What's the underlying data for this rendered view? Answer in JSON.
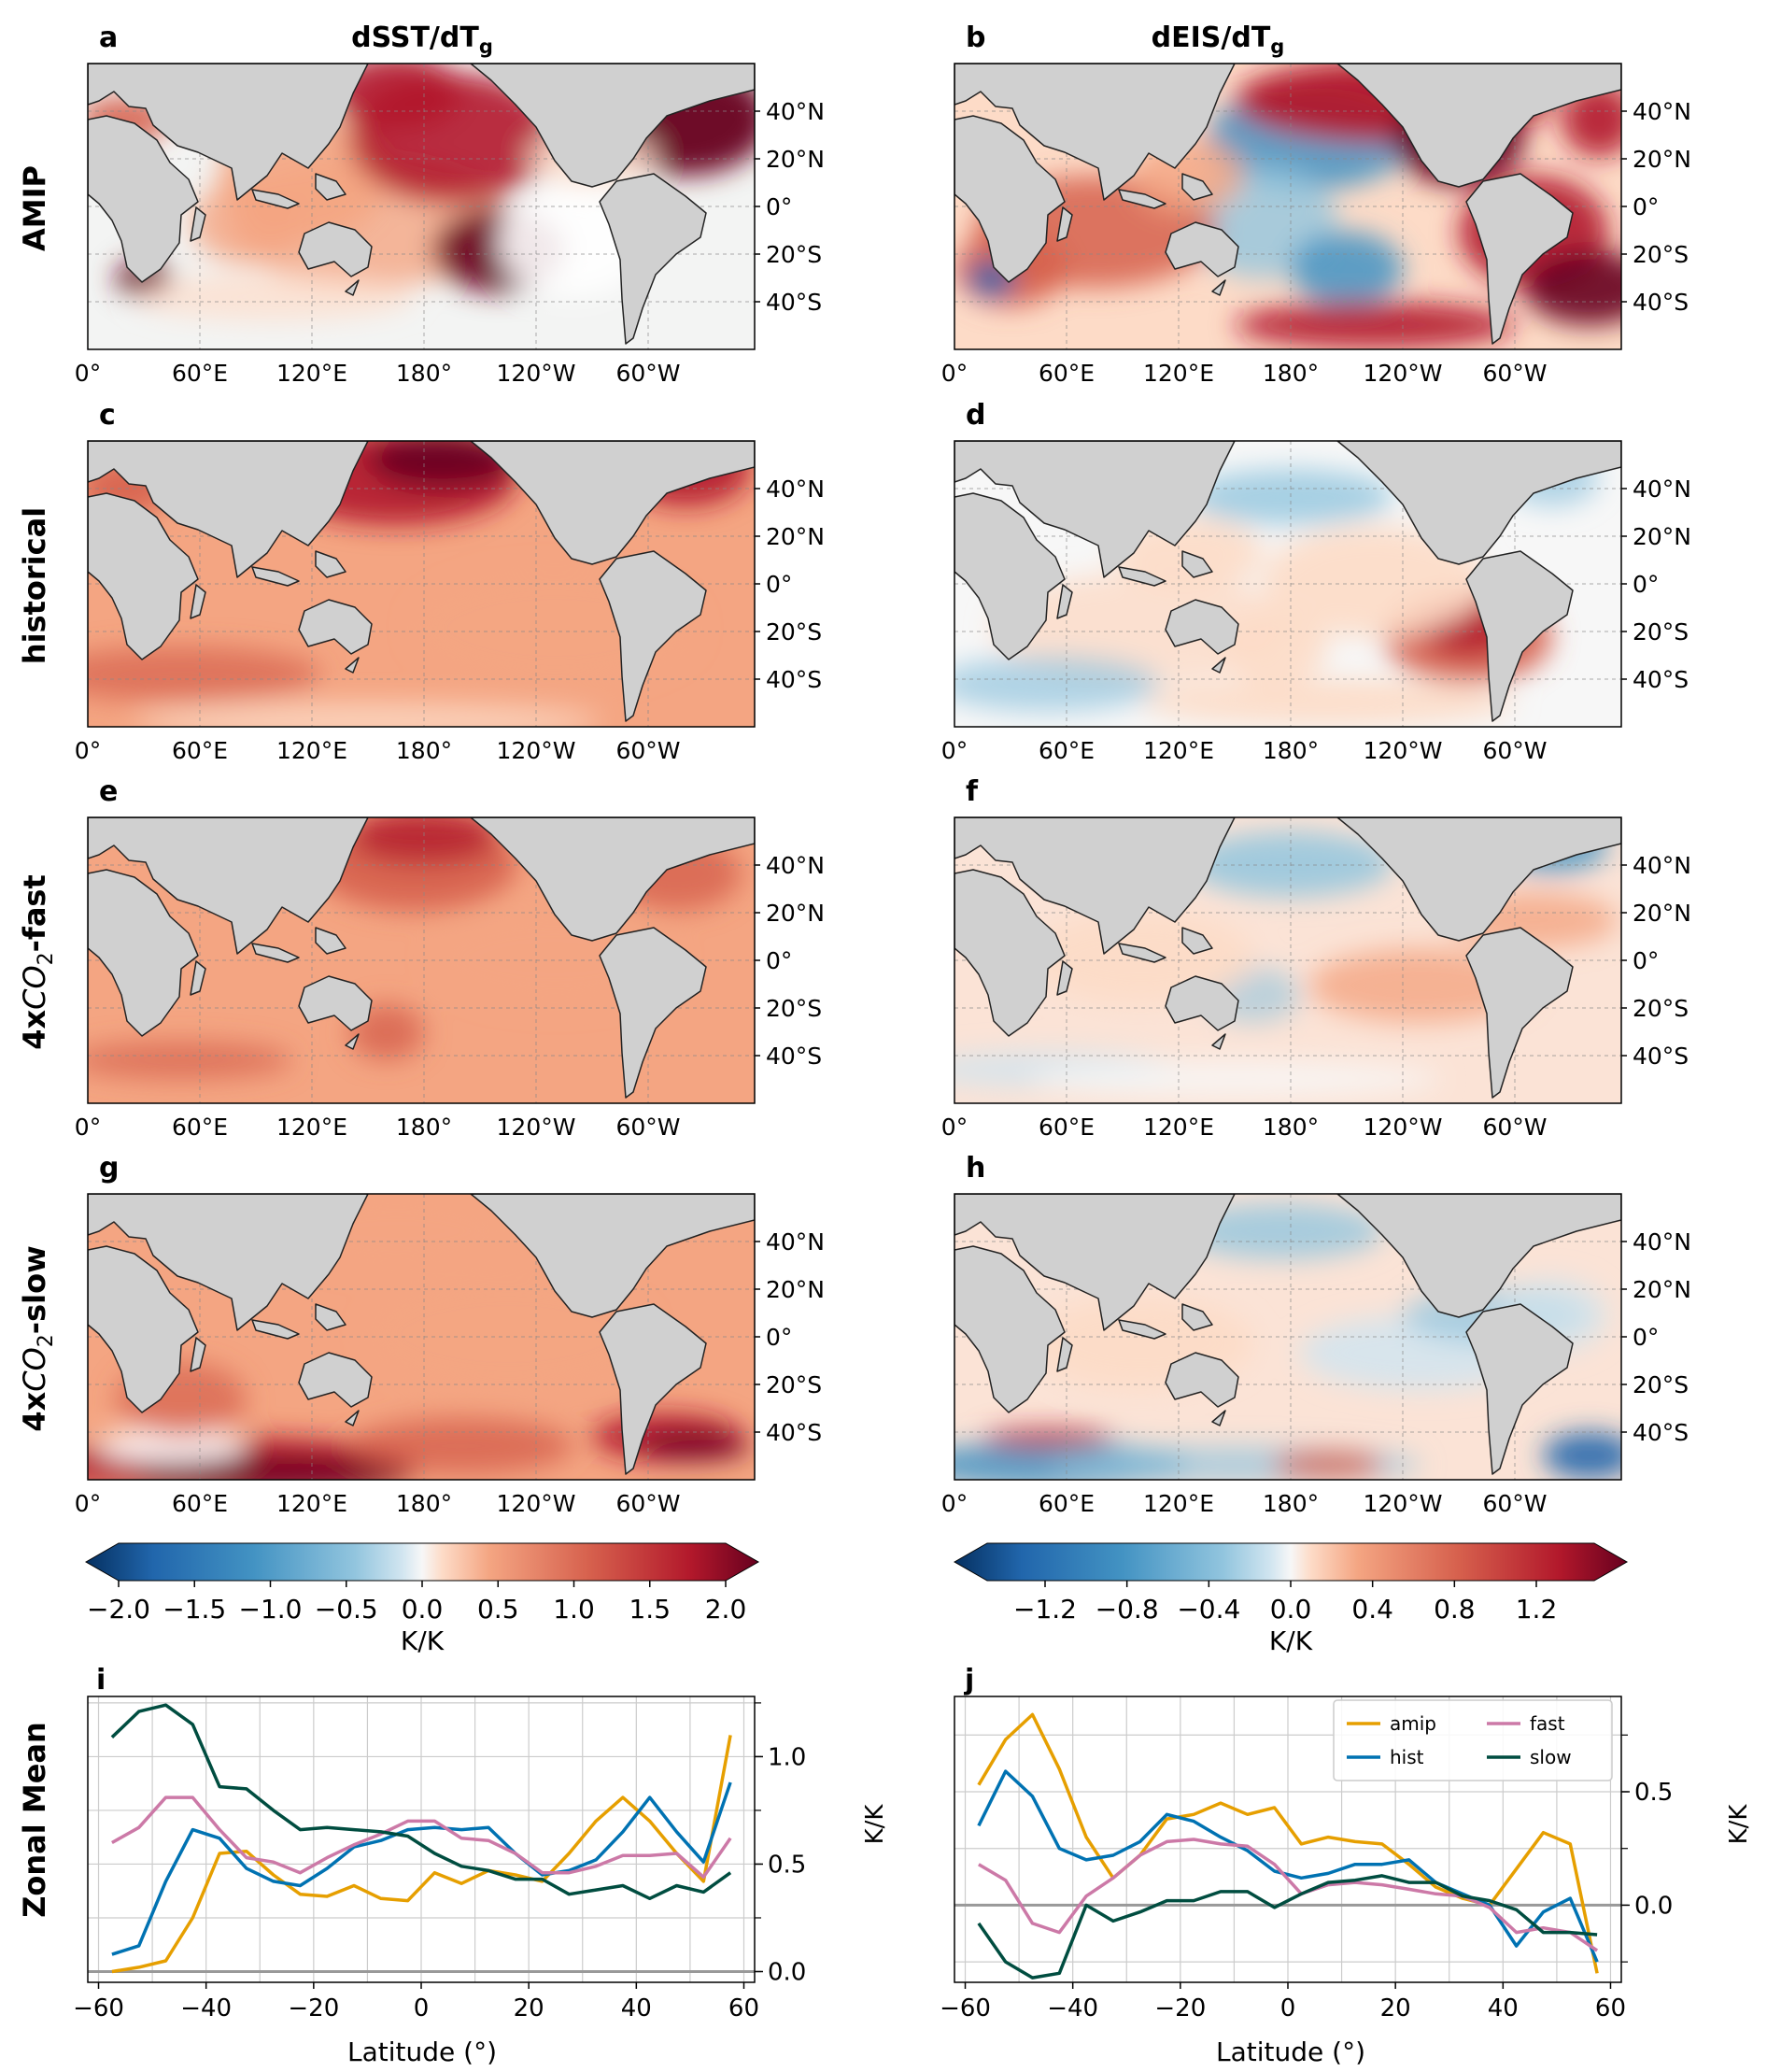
{
  "columns": {
    "left": {
      "title_base": "dSST/dT",
      "title_sub": "g"
    },
    "right": {
      "title_base": "dEIS/dT",
      "title_sub": "g"
    }
  },
  "rows": [
    {
      "label": "AMIP",
      "left_letter": "a",
      "right_letter": "b"
    },
    {
      "label": "historical",
      "left_letter": "c",
      "right_letter": "d"
    },
    {
      "label_parts": [
        "4x",
        "CO",
        "2",
        "-fast"
      ],
      "left_letter": "e",
      "right_letter": "f"
    },
    {
      "label_parts": [
        "4x",
        "CO",
        "2",
        "-slow"
      ],
      "left_letter": "g",
      "right_letter": "h"
    }
  ],
  "map_axes": {
    "lon_ticks": [
      "0°",
      "60°E",
      "120°E",
      "180°",
      "120°W",
      "60°W"
    ],
    "lat_ticks": [
      "40°N",
      "20°N",
      "0°",
      "20°S",
      "40°S"
    ]
  },
  "colors": {
    "land": "#d0d0d0",
    "coast": "#222222",
    "amip": "#e69f00",
    "hist": "#0072b2",
    "fast": "#cc79a7",
    "slow": "#004d40",
    "zero_line": "#999999",
    "grid": "#cccccc"
  },
  "colorbars": {
    "left": {
      "ticks": [
        "−2.0",
        "−1.5",
        "−1.0",
        "−0.5",
        "0.0",
        "0.5",
        "1.0",
        "1.5",
        "2.0"
      ],
      "unit": "K/K"
    },
    "right": {
      "ticks": [
        "−1.2",
        "−0.8",
        "−0.4",
        "0.0",
        "0.4",
        "0.8",
        "1.2"
      ],
      "unit": "K/K"
    }
  },
  "zonal": {
    "row_label": "Zonal Mean",
    "left_letter": "i",
    "right_letter": "j",
    "xlabel": "Latitude (°)",
    "ylabel": "K/K",
    "legend": [
      "amip",
      "hist",
      "fast",
      "slow"
    ]
  },
  "chart_data": [
    {
      "type": "line",
      "panel": "i",
      "xlabel": "Latitude (°)",
      "ylabel": "K/K",
      "xlim": [
        -62,
        62
      ],
      "ylim": [
        -0.05,
        1.28
      ],
      "xticks": [
        -60,
        -40,
        -20,
        0,
        20,
        40,
        60
      ],
      "yticks": [
        0.0,
        0.5,
        1.0
      ],
      "x": [
        -57.5,
        -52.5,
        -47.5,
        -42.5,
        -37.5,
        -32.5,
        -27.5,
        -22.5,
        -17.5,
        -12.5,
        -7.5,
        -2.5,
        2.5,
        7.5,
        12.5,
        17.5,
        22.5,
        27.5,
        32.5,
        37.5,
        42.5,
        47.5,
        52.5,
        57.5
      ],
      "series": [
        {
          "name": "amip",
          "values": [
            0.0,
            0.02,
            0.05,
            0.25,
            0.55,
            0.56,
            0.45,
            0.36,
            0.35,
            0.4,
            0.34,
            0.33,
            0.46,
            0.41,
            0.47,
            0.45,
            0.42,
            0.55,
            0.7,
            0.81,
            0.7,
            0.55,
            0.42,
            1.1
          ]
        },
        {
          "name": "hist",
          "values": [
            0.08,
            0.12,
            0.42,
            0.66,
            0.62,
            0.48,
            0.42,
            0.4,
            0.48,
            0.58,
            0.61,
            0.66,
            0.67,
            0.66,
            0.67,
            0.55,
            0.45,
            0.47,
            0.52,
            0.65,
            0.81,
            0.65,
            0.51,
            0.88
          ]
        },
        {
          "name": "fast",
          "values": [
            0.6,
            0.67,
            0.81,
            0.81,
            0.66,
            0.53,
            0.51,
            0.46,
            0.53,
            0.59,
            0.64,
            0.7,
            0.7,
            0.62,
            0.61,
            0.55,
            0.46,
            0.46,
            0.49,
            0.54,
            0.54,
            0.55,
            0.44,
            0.62
          ]
        },
        {
          "name": "slow",
          "values": [
            1.09,
            1.21,
            1.24,
            1.15,
            0.86,
            0.85,
            0.75,
            0.66,
            0.67,
            0.66,
            0.65,
            0.63,
            0.55,
            0.49,
            0.47,
            0.43,
            0.43,
            0.36,
            0.38,
            0.4,
            0.34,
            0.4,
            0.37,
            0.46
          ]
        }
      ]
    },
    {
      "type": "line",
      "panel": "j",
      "xlabel": "Latitude (°)",
      "ylabel": "K/K",
      "xlim": [
        -62,
        62
      ],
      "ylim": [
        -0.34,
        0.92
      ],
      "xticks": [
        -60,
        -40,
        -20,
        0,
        20,
        40,
        60
      ],
      "yticks": [
        0.0,
        0.5
      ],
      "legend_position": "top-right",
      "x": [
        -57.5,
        -52.5,
        -47.5,
        -42.5,
        -37.5,
        -32.5,
        -27.5,
        -22.5,
        -17.5,
        -12.5,
        -7.5,
        -2.5,
        2.5,
        7.5,
        12.5,
        17.5,
        22.5,
        27.5,
        32.5,
        37.5,
        42.5,
        47.5,
        52.5,
        57.5
      ],
      "series": [
        {
          "name": "amip",
          "values": [
            0.53,
            0.73,
            0.84,
            0.6,
            0.3,
            0.12,
            0.22,
            0.38,
            0.4,
            0.45,
            0.4,
            0.43,
            0.27,
            0.3,
            0.28,
            0.27,
            0.18,
            0.08,
            0.03,
            0.0,
            0.16,
            0.32,
            0.27,
            -0.3
          ]
        },
        {
          "name": "hist",
          "values": [
            0.35,
            0.59,
            0.48,
            0.25,
            0.2,
            0.22,
            0.28,
            0.4,
            0.37,
            0.3,
            0.24,
            0.15,
            0.12,
            0.14,
            0.18,
            0.18,
            0.2,
            0.1,
            0.05,
            0.0,
            -0.18,
            -0.03,
            0.03,
            -0.25
          ]
        },
        {
          "name": "fast",
          "values": [
            0.18,
            0.11,
            -0.08,
            -0.12,
            0.04,
            0.12,
            0.22,
            0.28,
            0.29,
            0.27,
            0.26,
            0.18,
            0.05,
            0.09,
            0.1,
            0.09,
            0.07,
            0.05,
            0.04,
            -0.01,
            -0.12,
            -0.1,
            -0.12,
            -0.2
          ]
        },
        {
          "name": "slow",
          "values": [
            -0.08,
            -0.25,
            -0.32,
            -0.3,
            0.0,
            -0.07,
            -0.03,
            0.02,
            0.02,
            0.06,
            0.06,
            -0.01,
            0.05,
            0.1,
            0.11,
            0.13,
            0.1,
            0.1,
            0.04,
            0.02,
            -0.02,
            -0.12,
            -0.12,
            -0.13
          ]
        }
      ]
    }
  ]
}
